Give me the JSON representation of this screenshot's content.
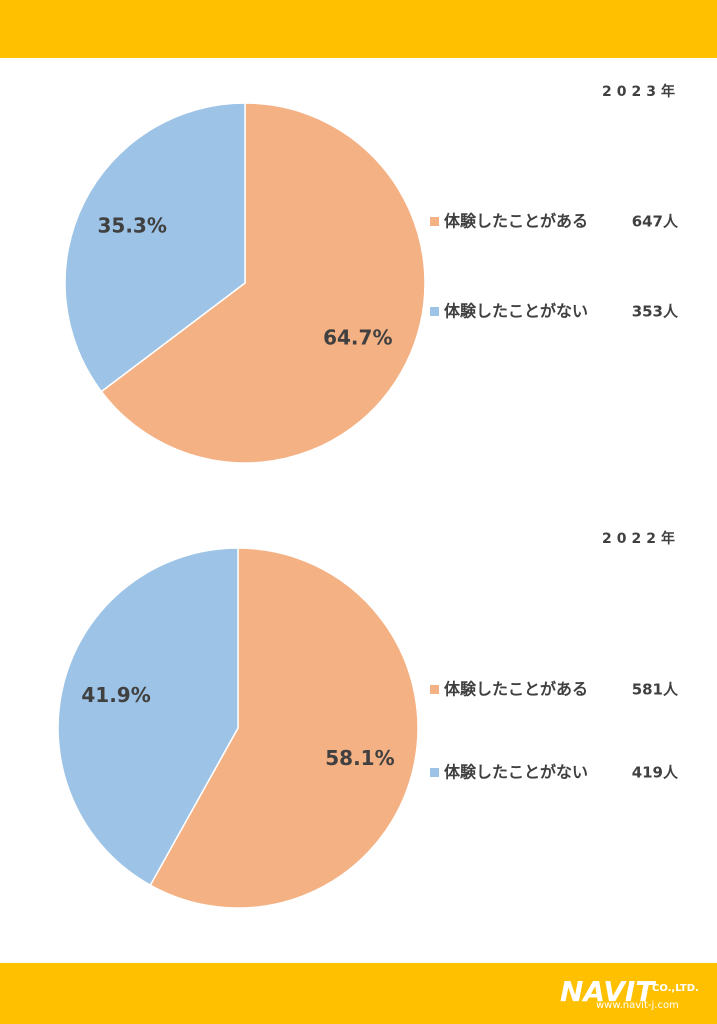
{
  "chart_data": [
    {
      "type": "pie",
      "title": "2023年",
      "categories": [
        "体験したことがある",
        "体験したことがない"
      ],
      "values": [
        64.7,
        35.3
      ],
      "value_labels": [
        "64.7%",
        "35.3%"
      ],
      "counts": [
        "647人",
        "353人"
      ],
      "colors": [
        "#F4B183",
        "#9DC3E6"
      ]
    },
    {
      "type": "pie",
      "title": "2022年",
      "categories": [
        "体験したことがある",
        "体験したことがない"
      ],
      "values": [
        58.1,
        41.9
      ],
      "value_labels": [
        "58.1%",
        "41.9%"
      ],
      "counts": [
        "581人",
        "419人"
      ],
      "colors": [
        "#F4B183",
        "#9DC3E6"
      ]
    }
  ],
  "footer": {
    "logo": "NAVIT",
    "company": "CO.,LTD.",
    "url": "www.navit-j.com"
  }
}
